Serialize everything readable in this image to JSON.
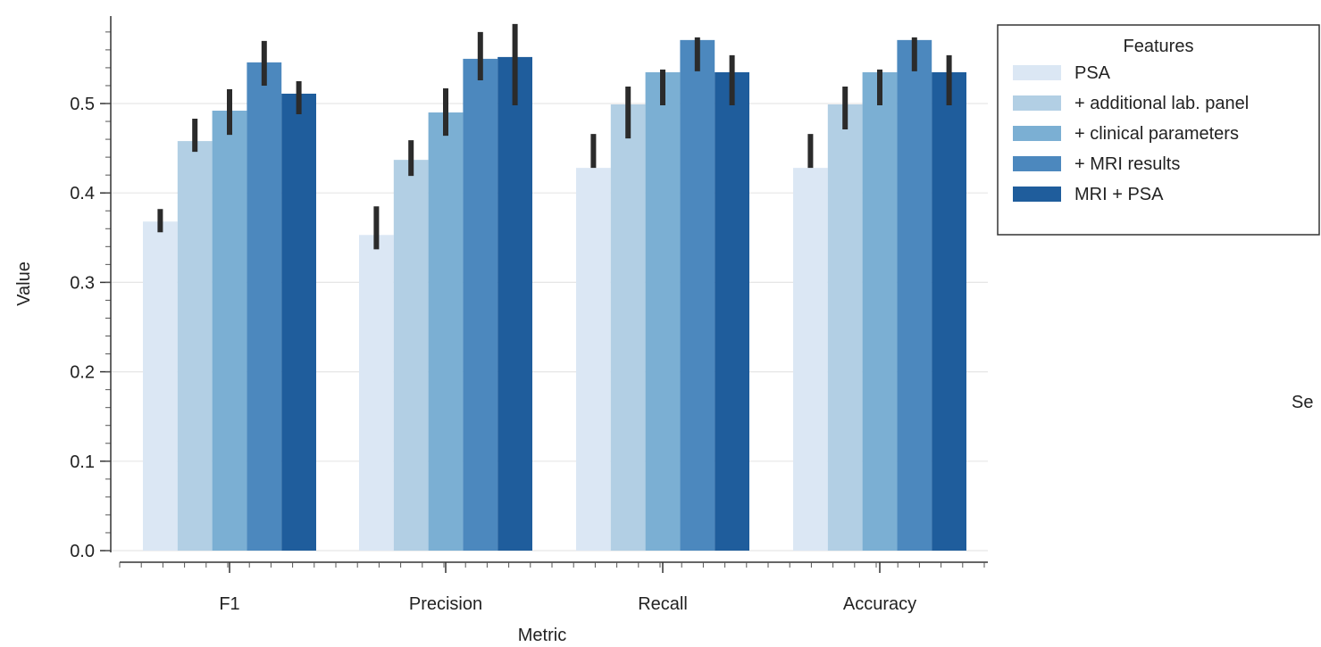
{
  "chart_data": {
    "type": "bar",
    "xlabel": "Metric",
    "ylabel": "Value",
    "ylim": [
      0,
      0.6
    ],
    "yticks": [
      0.0,
      0.1,
      0.2,
      0.3,
      0.4,
      0.5
    ],
    "ytick_labels": [
      "0.0",
      "0.1",
      "0.2",
      "0.3",
      "0.4",
      "0.5"
    ],
    "categories": [
      "F1",
      "Precision",
      "Recall",
      "Accuracy"
    ],
    "grid": true,
    "legend": {
      "title": "Features",
      "placement": "top-right, outside the axes"
    },
    "series": [
      {
        "name": "PSA",
        "color": "#dbe7f4",
        "values": [
          0.368,
          0.353,
          0.428,
          0.428
        ],
        "err_low": [
          0.356,
          0.337,
          0.428,
          0.428
        ],
        "err_high": [
          0.382,
          0.385,
          0.466,
          0.466
        ]
      },
      {
        "name": "+ additional lab. panel",
        "color": "#b2cfe4",
        "values": [
          0.458,
          0.437,
          0.499,
          0.499
        ],
        "err_low": [
          0.446,
          0.419,
          0.461,
          0.471
        ],
        "err_high": [
          0.483,
          0.459,
          0.519,
          0.519
        ]
      },
      {
        "name": "+ clinical parameters",
        "color": "#7bafd3",
        "values": [
          0.492,
          0.49,
          0.535,
          0.535
        ],
        "err_low": [
          0.465,
          0.464,
          0.498,
          0.498
        ],
        "err_high": [
          0.516,
          0.517,
          0.538,
          0.538
        ]
      },
      {
        "name": "+ MRI results",
        "color": "#4c88be",
        "values": [
          0.546,
          0.55,
          0.571,
          0.571
        ],
        "err_low": [
          0.52,
          0.526,
          0.536,
          0.536
        ],
        "err_high": [
          0.57,
          0.58,
          0.574,
          0.574
        ]
      },
      {
        "name": "MRI + PSA",
        "color": "#1f5d9c",
        "values": [
          0.511,
          0.552,
          0.535,
          0.535
        ],
        "err_low": [
          0.488,
          0.498,
          0.498,
          0.498
        ],
        "err_high": [
          0.525,
          0.589,
          0.554,
          0.554
        ]
      }
    ]
  },
  "stray_text": "Se"
}
